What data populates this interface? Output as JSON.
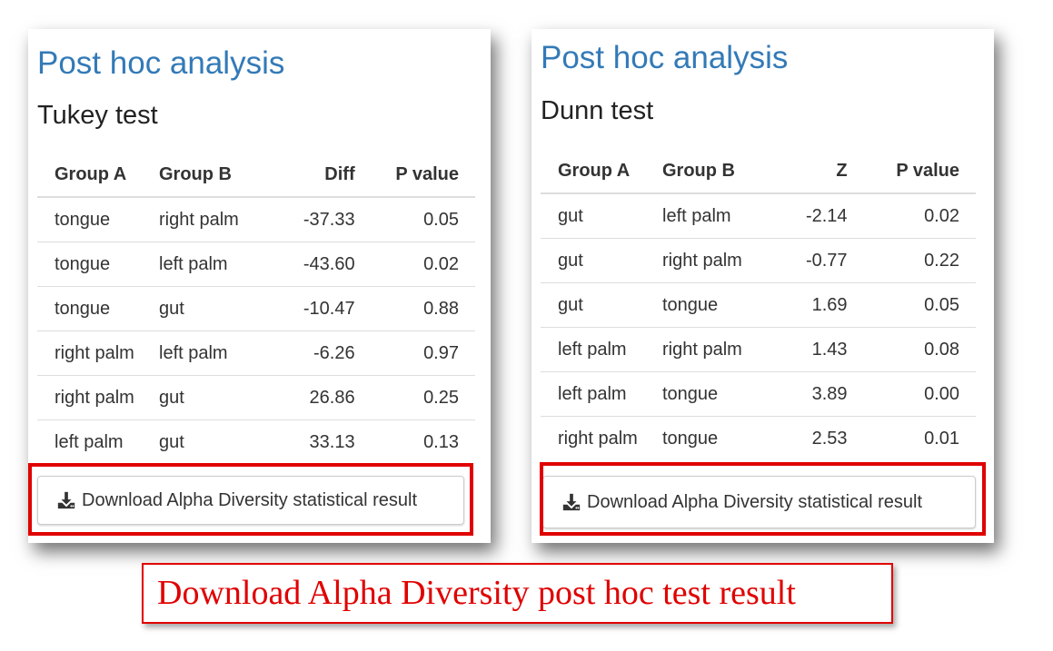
{
  "left_panel": {
    "title": "Post hoc analysis",
    "test_name": "Tukey test",
    "headers": [
      "Group A",
      "Group B",
      "Diff",
      "P value"
    ],
    "rows": [
      [
        "tongue",
        "right palm",
        "-37.33",
        "0.05"
      ],
      [
        "tongue",
        "left palm",
        "-43.60",
        "0.02"
      ],
      [
        "tongue",
        "gut",
        "-10.47",
        "0.88"
      ],
      [
        "right palm",
        "left palm",
        "-6.26",
        "0.97"
      ],
      [
        "right palm",
        "gut",
        "26.86",
        "0.25"
      ],
      [
        "left palm",
        "gut",
        "33.13",
        "0.13"
      ]
    ],
    "download_label": "Download Alpha Diversity statistical result"
  },
  "right_panel": {
    "title": "Post hoc analysis",
    "test_name": "Dunn test",
    "headers": [
      "Group A",
      "Group B",
      "Z",
      "P value"
    ],
    "rows": [
      [
        "gut",
        "left palm",
        "-2.14",
        "0.02"
      ],
      [
        "gut",
        "right palm",
        "-0.77",
        "0.22"
      ],
      [
        "gut",
        "tongue",
        "1.69",
        "0.05"
      ],
      [
        "left palm",
        "right palm",
        "1.43",
        "0.08"
      ],
      [
        "left palm",
        "tongue",
        "3.89",
        "0.00"
      ],
      [
        "right palm",
        "tongue",
        "2.53",
        "0.01"
      ]
    ],
    "download_label": "Download Alpha Diversity statistical result"
  },
  "caption": "Download Alpha Diversity post hoc test result",
  "colors": {
    "title_blue": "#337ab7",
    "highlight_red": "#e00000",
    "table_border": "#dddddd"
  },
  "icons": {
    "download": "download-icon"
  }
}
